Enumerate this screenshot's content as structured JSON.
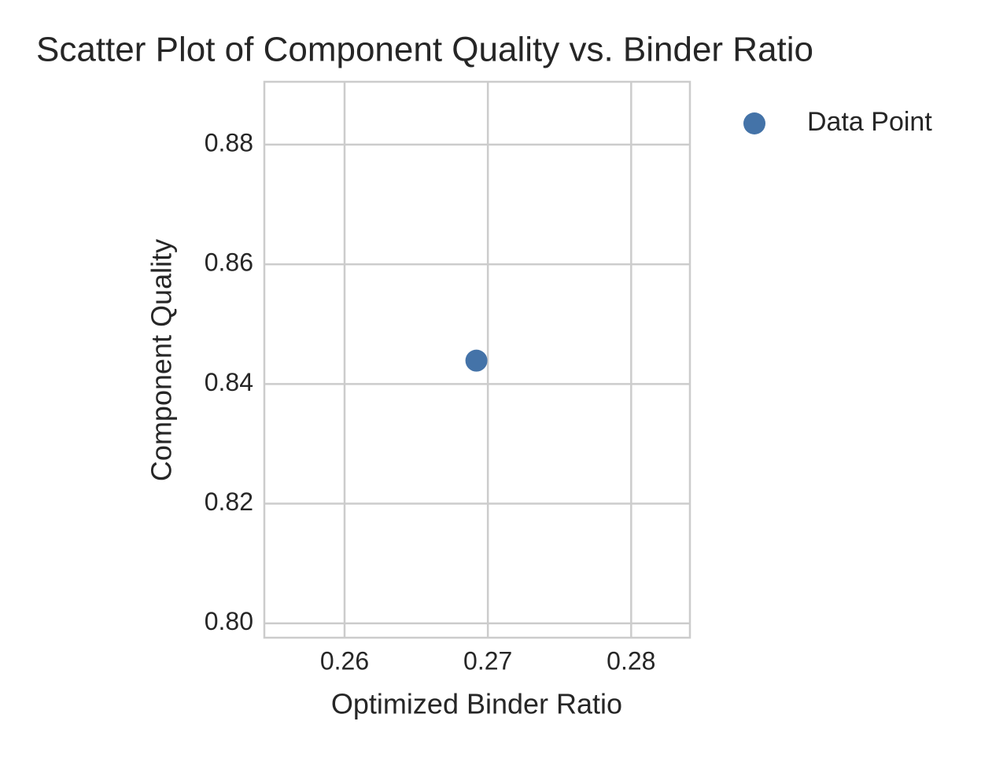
{
  "chart_data": {
    "type": "scatter",
    "title": "Scatter Plot of Component Quality vs. Binder Ratio",
    "x_label": "Optimized Binder Ratio",
    "y_label": "Component Quality",
    "series": [
      {
        "name": "Data Point",
        "color": "#4473a8",
        "x": [
          0.2692
        ],
        "values": [
          0.8439
        ]
      }
    ],
    "xlim": [
      0.2544,
      0.2841
    ],
    "ylim": [
      0.7976,
      0.8905
    ],
    "xticks": [
      0.26,
      0.27,
      0.28
    ],
    "yticks": [
      {
        "value": 0.8,
        "label": "0.80"
      },
      0.82,
      0.84,
      0.86,
      0.88
    ],
    "grid": true,
    "legend": "outside-right"
  }
}
